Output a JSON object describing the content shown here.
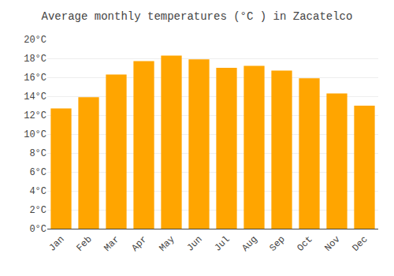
{
  "chart_data": {
    "type": "bar",
    "title": "Average monthly temperatures (°C ) in Zacatelco",
    "categories": [
      "Jan",
      "Feb",
      "Mar",
      "Apr",
      "May",
      "Jun",
      "Jul",
      "Aug",
      "Sep",
      "Oct",
      "Nov",
      "Dec"
    ],
    "values": [
      12.7,
      13.9,
      16.3,
      17.7,
      18.3,
      17.9,
      17.0,
      17.2,
      16.7,
      15.9,
      14.3,
      13.0
    ],
    "color": "#FFA500",
    "ylim": [
      0,
      20
    ],
    "yticks": [
      {
        "value": 0,
        "label": "0°C"
      },
      {
        "value": 2,
        "label": "2°C"
      },
      {
        "value": 4,
        "label": "4°C"
      },
      {
        "value": 6,
        "label": "6°C"
      },
      {
        "value": 8,
        "label": "8°C"
      },
      {
        "value": 10,
        "label": "10°C"
      },
      {
        "value": 12,
        "label": "12°C"
      },
      {
        "value": 14,
        "label": "14°C"
      },
      {
        "value": 16,
        "label": "16°C"
      },
      {
        "value": 18,
        "label": "18°C"
      },
      {
        "value": 20,
        "label": "20°C"
      }
    ],
    "grid": true
  }
}
